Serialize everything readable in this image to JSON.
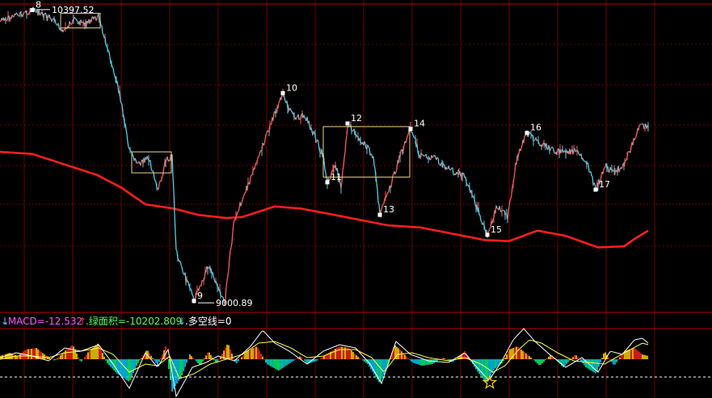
{
  "colors": {
    "background": "#000000",
    "grid": "#6e0000",
    "panel_divider": "#b80000",
    "price_up": "#ff5a5a",
    "price_down": "#4fd0e8",
    "moving_average": "#ff1e1e",
    "box": "#e8d88a",
    "label": "#ffffff",
    "macd_label": "#ff55ff",
    "green_area_label": "#55ff55",
    "up_arrow": "#ff3b3b",
    "down_arrow": "#55ccff",
    "bull_bar_a": "#ff2020",
    "bull_bar_b": "#ffd700",
    "bear_bar_a": "#00ff66",
    "bear_bar_b": "#00ccff",
    "dif_line": "#ffffff",
    "dea_line": "#ffff40",
    "zero_line": "#ffffff"
  },
  "indicator_bar": {
    "macd_label": ".MACD=-12.532",
    "green_area_label": ".绿面积=-10202.809",
    "bull_bear_label": ".多空线=0",
    "arrows": [
      "up-arrow",
      "down-arrow"
    ]
  },
  "chart_data": {
    "type": "line",
    "title": "",
    "xlabel": "",
    "ylabel": "",
    "ylim": [
      8990,
      10420
    ],
    "price_markers": [
      {
        "label": "10397.52",
        "value": 10397.52
      },
      {
        "label": "9000.89",
        "value": 9000.89
      }
    ],
    "pivots": [
      {
        "label": "8",
        "index": 40,
        "value": 10395
      },
      {
        "label": "9",
        "index": 240,
        "value": 9010
      },
      {
        "label": "10",
        "index": 350,
        "value": 10000
      },
      {
        "label": "11",
        "index": 405,
        "value": 9575
      },
      {
        "label": "12",
        "index": 430,
        "value": 9855
      },
      {
        "label": "13",
        "index": 470,
        "value": 9420
      },
      {
        "label": "14",
        "index": 508,
        "value": 9830
      },
      {
        "label": "15",
        "index": 603,
        "value": 9325
      },
      {
        "label": "16",
        "index": 652,
        "value": 9810
      },
      {
        "label": "17",
        "index": 737,
        "value": 9540
      }
    ],
    "series": [
      {
        "role": "price",
        "keypoints": [
          [
            0,
            10340
          ],
          [
            40,
            10395
          ],
          [
            60,
            10360
          ],
          [
            78,
            10300
          ],
          [
            92,
            10345
          ],
          [
            104,
            10330
          ],
          [
            122,
            10365
          ],
          [
            135,
            10180
          ],
          [
            148,
            10000
          ],
          [
            160,
            9720
          ],
          [
            172,
            9660
          ],
          [
            185,
            9690
          ],
          [
            195,
            9530
          ],
          [
            205,
            9670
          ],
          [
            213,
            9710
          ],
          [
            218,
            9250
          ],
          [
            240,
            9010
          ],
          [
            258,
            9180
          ],
          [
            278,
            9000
          ],
          [
            290,
            9400
          ],
          [
            310,
            9590
          ],
          [
            330,
            9800
          ],
          [
            350,
            10000
          ],
          [
            362,
            9890
          ],
          [
            378,
            9890
          ],
          [
            400,
            9700
          ],
          [
            405,
            9575
          ],
          [
            415,
            9660
          ],
          [
            422,
            9540
          ],
          [
            430,
            9855
          ],
          [
            450,
            9760
          ],
          [
            462,
            9700
          ],
          [
            470,
            9420
          ],
          [
            480,
            9520
          ],
          [
            495,
            9700
          ],
          [
            508,
            9830
          ],
          [
            520,
            9700
          ],
          [
            538,
            9690
          ],
          [
            555,
            9640
          ],
          [
            575,
            9600
          ],
          [
            590,
            9460
          ],
          [
            603,
            9325
          ],
          [
            615,
            9460
          ],
          [
            628,
            9410
          ],
          [
            640,
            9700
          ],
          [
            652,
            9810
          ],
          [
            668,
            9760
          ],
          [
            690,
            9720
          ],
          [
            712,
            9720
          ],
          [
            725,
            9680
          ],
          [
            737,
            9540
          ],
          [
            750,
            9650
          ],
          [
            760,
            9620
          ],
          [
            772,
            9660
          ],
          [
            782,
            9750
          ],
          [
            792,
            9860
          ],
          [
            802,
            9830
          ]
        ]
      },
      {
        "role": "moving_average",
        "keypoints": [
          [
            0,
            9720
          ],
          [
            40,
            9710
          ],
          [
            80,
            9660
          ],
          [
            120,
            9610
          ],
          [
            150,
            9550
          ],
          [
            180,
            9470
          ],
          [
            215,
            9450
          ],
          [
            245,
            9420
          ],
          [
            280,
            9405
          ],
          [
            300,
            9410
          ],
          [
            320,
            9435
          ],
          [
            340,
            9460
          ],
          [
            372,
            9450
          ],
          [
            400,
            9430
          ],
          [
            440,
            9400
          ],
          [
            480,
            9370
          ],
          [
            520,
            9360
          ],
          [
            560,
            9330
          ],
          [
            600,
            9300
          ],
          [
            630,
            9295
          ],
          [
            665,
            9345
          ],
          [
            700,
            9320
          ],
          [
            740,
            9265
          ],
          [
            772,
            9270
          ],
          [
            785,
            9305
          ],
          [
            802,
            9345
          ]
        ]
      }
    ],
    "boxes": [
      {
        "x": [
          75,
          124
        ],
        "y": [
          10310,
          10380
        ]
      },
      {
        "x": [
          163,
          212
        ],
        "y": [
          9620,
          9720
        ]
      },
      {
        "x": [
          400,
          507
        ],
        "y": [
          9600,
          9840
        ]
      }
    ],
    "macd": {
      "histogram_keypoints": [
        [
          0,
          4
        ],
        [
          12,
          8
        ],
        [
          22,
          4
        ],
        [
          32,
          12
        ],
        [
          45,
          14
        ],
        [
          55,
          6
        ],
        [
          68,
          -2
        ],
        [
          80,
          10
        ],
        [
          90,
          18
        ],
        [
          100,
          -4
        ],
        [
          110,
          10
        ],
        [
          122,
          20
        ],
        [
          132,
          -4
        ],
        [
          145,
          -18
        ],
        [
          160,
          -28
        ],
        [
          170,
          -6
        ],
        [
          182,
          12
        ],
        [
          195,
          -8
        ],
        [
          205,
          16
        ],
        [
          213,
          -40
        ],
        [
          225,
          -20
        ],
        [
          235,
          6
        ],
        [
          248,
          -8
        ],
        [
          258,
          10
        ],
        [
          268,
          -6
        ],
        [
          282,
          20
        ],
        [
          292,
          -6
        ],
        [
          305,
          10
        ],
        [
          318,
          16
        ],
        [
          330,
          -6
        ],
        [
          345,
          -14
        ],
        [
          360,
          -4
        ],
        [
          372,
          4
        ],
        [
          380,
          -6
        ],
        [
          392,
          -2
        ],
        [
          410,
          10
        ],
        [
          420,
          16
        ],
        [
          432,
          14
        ],
        [
          442,
          4
        ],
        [
          455,
          -6
        ],
        [
          470,
          -30
        ],
        [
          480,
          -8
        ],
        [
          488,
          18
        ],
        [
          495,
          12
        ],
        [
          510,
          -4
        ],
        [
          522,
          -8
        ],
        [
          535,
          -6
        ],
        [
          548,
          2
        ],
        [
          560,
          -4
        ],
        [
          575,
          10
        ],
        [
          590,
          -14
        ],
        [
          602,
          -30
        ],
        [
          612,
          -12
        ],
        [
          622,
          -4
        ],
        [
          630,
          12
        ],
        [
          640,
          16
        ],
        [
          655,
          4
        ],
        [
          668,
          -8
        ],
        [
          682,
          6
        ],
        [
          697,
          -10
        ],
        [
          712,
          6
        ],
        [
          725,
          -10
        ],
        [
          738,
          -18
        ],
        [
          748,
          10
        ],
        [
          760,
          -8
        ],
        [
          772,
          10
        ],
        [
          785,
          14
        ],
        [
          795,
          6
        ],
        [
          802,
          4
        ]
      ],
      "dif_keypoints": [
        [
          0,
          2
        ],
        [
          20,
          8
        ],
        [
          40,
          4
        ],
        [
          60,
          -2
        ],
        [
          80,
          14
        ],
        [
          100,
          10
        ],
        [
          122,
          18
        ],
        [
          140,
          -6
        ],
        [
          160,
          -36
        ],
        [
          180,
          8
        ],
        [
          195,
          -10
        ],
        [
          208,
          12
        ],
        [
          218,
          -46
        ],
        [
          238,
          -10
        ],
        [
          255,
          -4
        ],
        [
          270,
          4
        ],
        [
          290,
          -2
        ],
        [
          310,
          16
        ],
        [
          325,
          36
        ],
        [
          340,
          20
        ],
        [
          358,
          10
        ],
        [
          380,
          -6
        ],
        [
          400,
          10
        ],
        [
          420,
          18
        ],
        [
          440,
          14
        ],
        [
          458,
          -6
        ],
        [
          472,
          -30
        ],
        [
          490,
          22
        ],
        [
          508,
          6
        ],
        [
          530,
          -2
        ],
        [
          555,
          -4
        ],
        [
          575,
          8
        ],
        [
          590,
          -10
        ],
        [
          605,
          -26
        ],
        [
          620,
          -4
        ],
        [
          635,
          24
        ],
        [
          648,
          38
        ],
        [
          662,
          22
        ],
        [
          680,
          6
        ],
        [
          700,
          -10
        ],
        [
          720,
          2
        ],
        [
          740,
          -16
        ],
        [
          755,
          10
        ],
        [
          770,
          6
        ],
        [
          785,
          24
        ],
        [
          795,
          26
        ],
        [
          802,
          20
        ]
      ],
      "dea_keypoints": [
        [
          0,
          0
        ],
        [
          20,
          4
        ],
        [
          40,
          4
        ],
        [
          60,
          2
        ],
        [
          80,
          8
        ],
        [
          100,
          10
        ],
        [
          122,
          14
        ],
        [
          140,
          6
        ],
        [
          160,
          -16
        ],
        [
          180,
          -6
        ],
        [
          195,
          -8
        ],
        [
          210,
          4
        ],
        [
          222,
          -24
        ],
        [
          240,
          -18
        ],
        [
          260,
          -6
        ],
        [
          280,
          0
        ],
        [
          300,
          6
        ],
        [
          320,
          20
        ],
        [
          340,
          22
        ],
        [
          360,
          14
        ],
        [
          380,
          2
        ],
        [
          400,
          4
        ],
        [
          420,
          12
        ],
        [
          440,
          12
        ],
        [
          460,
          2
        ],
        [
          475,
          -16
        ],
        [
          492,
          6
        ],
        [
          510,
          8
        ],
        [
          530,
          2
        ],
        [
          555,
          -2
        ],
        [
          575,
          2
        ],
        [
          595,
          -6
        ],
        [
          610,
          -16
        ],
        [
          625,
          -8
        ],
        [
          640,
          10
        ],
        [
          655,
          24
        ],
        [
          670,
          20
        ],
        [
          690,
          8
        ],
        [
          710,
          -2
        ],
        [
          730,
          -4
        ],
        [
          748,
          -6
        ],
        [
          762,
          2
        ],
        [
          780,
          12
        ],
        [
          795,
          20
        ],
        [
          802,
          18
        ]
      ]
    }
  }
}
